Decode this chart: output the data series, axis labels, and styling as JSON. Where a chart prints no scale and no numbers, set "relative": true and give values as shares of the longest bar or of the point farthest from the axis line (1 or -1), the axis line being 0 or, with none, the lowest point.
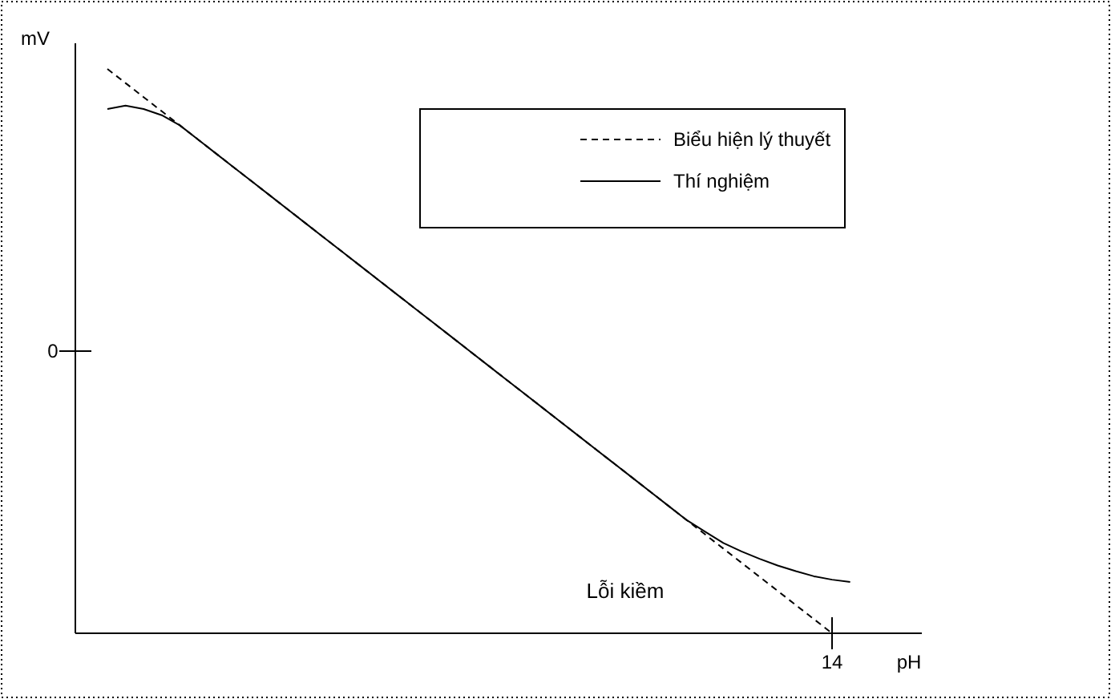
{
  "chart_data": {
    "type": "line",
    "relative": true,
    "xlabel": "pH",
    "ylabel": "mV",
    "legend": "top right",
    "categories": [
      null,
      null,
      null,
      null,
      null,
      null,
      null,
      null,
      null,
      null,
      null,
      null,
      null,
      null,
      null,
      null,
      null,
      null,
      null,
      null,
      null,
      null,
      null,
      null,
      null,
      null,
      null,
      null,
      null,
      null,
      null,
      null,
      null,
      null,
      null,
      null,
      null,
      null,
      null,
      null,
      null,
      null
    ],
    "annotations": [
      "0",
      "14",
      "Lỗi kiềm"
    ],
    "series": [
      {
        "name": "Biểu hiện lý thuyết",
        "color": "#000000",
        "line_style": "dashed",
        "values": [
          1,
          0.975,
          0.95,
          0.925,
          0.9,
          0.875,
          0.85,
          0.825,
          0.8,
          0.775,
          0.75,
          0.725,
          0.7,
          0.675,
          0.65,
          0.625,
          0.6,
          0.575,
          0.55,
          0.525,
          0.5,
          0.475,
          0.45,
          0.425,
          0.4,
          0.375,
          0.35,
          0.325,
          0.3,
          0.275,
          0.25,
          0.225,
          0.2,
          0.175,
          0.15,
          0.125,
          0.1,
          0.075,
          0.05,
          0.025,
          0,
          null
        ]
      },
      {
        "name": "Thí nghiệm",
        "color": "#000000",
        "line_style": "solid",
        "values": [
          0.929,
          0.935,
          0.929,
          0.918,
          0.9,
          0.875,
          0.85,
          0.825,
          0.8,
          0.775,
          0.75,
          0.725,
          0.7,
          0.675,
          0.65,
          0.625,
          0.6,
          0.575,
          0.55,
          0.525,
          0.5,
          0.475,
          0.45,
          0.425,
          0.4,
          0.375,
          0.35,
          0.325,
          0.3,
          0.275,
          0.25,
          0.225,
          0.2,
          0.18,
          0.16,
          0.145,
          0.132,
          0.12,
          0.11,
          0.101,
          0.095,
          0.091
        ]
      }
    ]
  }
}
